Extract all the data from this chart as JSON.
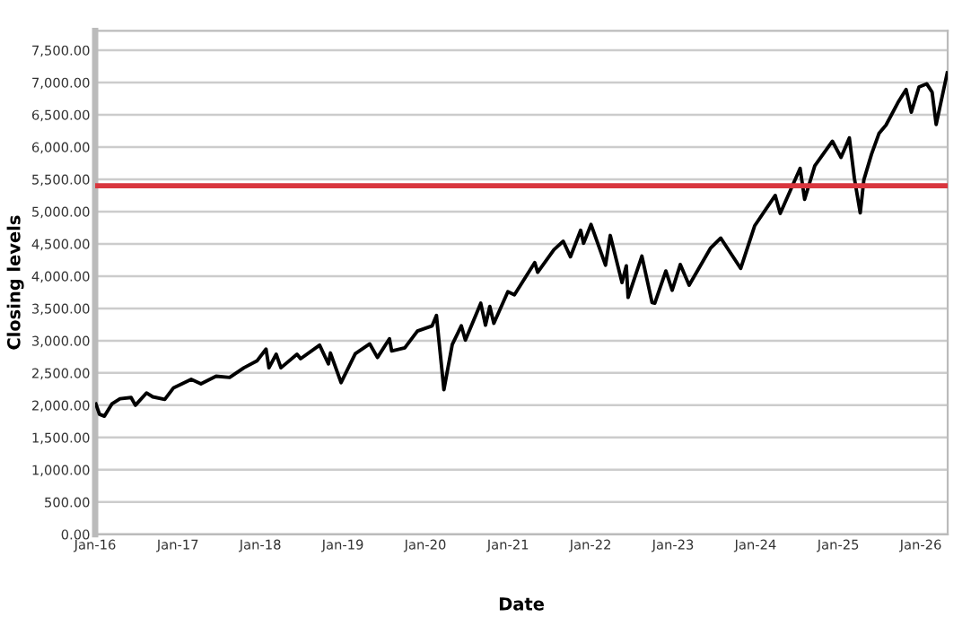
{
  "chart_data": {
    "type": "line",
    "xlabel": "Date",
    "ylabel": "Closing levels",
    "x": [
      "2016-01-04",
      "2016-01-20",
      "2016-02-11",
      "2016-03-15",
      "2016-04-20",
      "2016-06-08",
      "2016-06-27",
      "2016-08-15",
      "2016-09-12",
      "2016-11-04",
      "2016-12-13",
      "2017-03-01",
      "2017-04-13",
      "2017-06-19",
      "2017-08-18",
      "2017-10-20",
      "2017-12-18",
      "2018-01-26",
      "2018-02-08",
      "2018-03-12",
      "2018-04-02",
      "2018-06-12",
      "2018-06-28",
      "2018-09-20",
      "2018-10-29",
      "2018-11-07",
      "2018-12-24",
      "2019-02-25",
      "2019-04-30",
      "2019-06-03",
      "2019-07-26",
      "2019-08-05",
      "2019-10-02",
      "2019-11-27",
      "2020-01-31",
      "2020-02-19",
      "2020-03-23",
      "2020-04-29",
      "2020-06-08",
      "2020-06-26",
      "2020-09-02",
      "2020-09-23",
      "2020-10-12",
      "2020-10-30",
      "2020-12-31",
      "2021-01-29",
      "2021-04-29",
      "2021-05-12",
      "2021-07-23",
      "2021-09-02",
      "2021-10-04",
      "2021-11-18",
      "2021-12-01",
      "2022-01-03",
      "2022-03-08",
      "2022-03-29",
      "2022-05-20",
      "2022-06-08",
      "2022-06-16",
      "2022-08-16",
      "2022-09-30",
      "2022-10-12",
      "2022-11-30",
      "2022-12-28",
      "2023-02-02",
      "2023-03-13",
      "2023-06-15",
      "2023-07-31",
      "2023-10-27",
      "2023-12-28",
      "2024-03-28",
      "2024-04-19",
      "2024-07-16",
      "2024-08-05",
      "2024-09-19",
      "2024-12-06",
      "2025-01-13",
      "2025-02-19",
      "2025-03-13",
      "2025-04-08",
      "2025-04-24",
      "2025-05-28",
      "2025-06-30",
      "2025-07-31",
      "2025-09-22",
      "2025-10-28",
      "2025-11-20",
      "2025-12-24",
      "2026-01-27",
      "2026-02-20",
      "2026-03-10",
      "2026-04-28"
    ],
    "series": [
      {
        "color": "#000000",
        "values": [
          2020,
          1860,
          1830,
          2020,
          2100,
          2120,
          2000,
          2190,
          2130,
          2090,
          2270,
          2400,
          2330,
          2450,
          2430,
          2580,
          2690,
          2870,
          2580,
          2790,
          2580,
          2790,
          2720,
          2930,
          2640,
          2810,
          2350,
          2800,
          2950,
          2740,
          3030,
          2840,
          2890,
          3150,
          3230,
          3390,
          2240,
          2940,
          3230,
          3010,
          3580,
          3240,
          3530,
          3270,
          3760,
          3710,
          4210,
          4060,
          4410,
          4540,
          4300,
          4710,
          4510,
          4800,
          4170,
          4630,
          3900,
          4160,
          3670,
          4310,
          3590,
          3580,
          4080,
          3780,
          4180,
          3860,
          4430,
          4590,
          4120,
          4780,
          5250,
          4970,
          5670,
          5190,
          5710,
          6090,
          5840,
          6140,
          5520,
          4980,
          5490,
          5890,
          6210,
          6340,
          6690,
          6890,
          6540,
          6930,
          6980,
          6850,
          6350,
          7150
        ]
      }
    ],
    "xlim": [
      "2016-01-01",
      "2026-04-30"
    ],
    "xticks": [
      {
        "value": "2016-01-01",
        "label": "Jan-16"
      },
      {
        "value": "2017-01-01",
        "label": "Jan-17"
      },
      {
        "value": "2018-01-01",
        "label": "Jan-18"
      },
      {
        "value": "2019-01-01",
        "label": "Jan-19"
      },
      {
        "value": "2020-01-01",
        "label": "Jan-20"
      },
      {
        "value": "2021-01-01",
        "label": "Jan-21"
      },
      {
        "value": "2022-01-01",
        "label": "Jan-22"
      },
      {
        "value": "2023-01-01",
        "label": "Jan-23"
      },
      {
        "value": "2024-01-01",
        "label": "Jan-24"
      },
      {
        "value": "2025-01-01",
        "label": "Jan-25"
      },
      {
        "value": "2026-01-01",
        "label": "Jan-26"
      }
    ],
    "ylim": [
      0,
      7800
    ],
    "yticks": [
      {
        "value": 0,
        "label": "0.00"
      },
      {
        "value": 500,
        "label": "500.00"
      },
      {
        "value": 1000,
        "label": "1,000.00"
      },
      {
        "value": 1500,
        "label": "1,500.00"
      },
      {
        "value": 2000,
        "label": "2,000.00"
      },
      {
        "value": 2500,
        "label": "2,500.00"
      },
      {
        "value": 3000,
        "label": "3,000.00"
      },
      {
        "value": 3500,
        "label": "3,500.00"
      },
      {
        "value": 4000,
        "label": "4,000.00"
      },
      {
        "value": 4500,
        "label": "4,500.00"
      },
      {
        "value": 5000,
        "label": "5,000.00"
      },
      {
        "value": 5500,
        "label": "5,500.00"
      },
      {
        "value": 6000,
        "label": "6,000.00"
      },
      {
        "value": 6500,
        "label": "6,500.00"
      },
      {
        "value": 7000,
        "label": "7,000.00"
      },
      {
        "value": 7500,
        "label": "7,500.00"
      }
    ],
    "ref_lines": [
      {
        "axis": "y",
        "value": 5400,
        "color": "#d9363e"
      }
    ],
    "grid": "y",
    "legend": false,
    "marker": "none",
    "line_style": "solid"
  }
}
